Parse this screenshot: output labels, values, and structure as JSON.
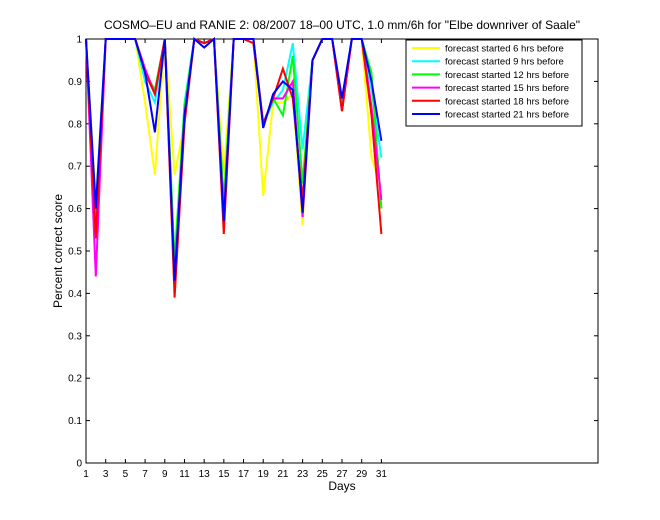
{
  "chart_data": {
    "type": "line",
    "title": "COSMO–EU and RANIE 2: 08/2007 18–00 UTC, 1.0 mm/6h for \"Elbe downriver of Saale\"",
    "xlabel": "Days",
    "ylabel": "Percent correct score",
    "xlim": [
      1,
      53
    ],
    "ylim": [
      0,
      1
    ],
    "x_ticks": [
      "1",
      "3",
      "5",
      "7",
      "9",
      "11",
      "13",
      "15",
      "17",
      "19",
      "21",
      "23",
      "25",
      "27",
      "29",
      "31"
    ],
    "y_ticks": [
      "0",
      "0.1",
      "0.2",
      "0.3",
      "0.4",
      "0.5",
      "0.6",
      "0.7",
      "0.8",
      "0.9",
      "1"
    ],
    "legend_position": "top-right",
    "grid": false,
    "x": [
      1,
      2,
      3,
      4,
      5,
      6,
      7,
      8,
      9,
      10,
      11,
      12,
      13,
      14,
      15,
      16,
      17,
      18,
      19,
      20,
      21,
      22,
      23,
      24,
      25,
      26,
      27,
      28,
      29,
      30,
      31
    ],
    "series": [
      {
        "name": "forecast started 6 hrs before",
        "color": "#ffff00",
        "values": [
          1,
          0.62,
          1,
          1,
          1,
          1,
          0.85,
          0.68,
          1,
          0.68,
          0.8,
          1,
          0.99,
          1,
          0.68,
          1,
          1,
          1,
          0.63,
          0.85,
          0.85,
          0.87,
          0.56,
          0.95,
          1,
          1,
          0.85,
          1,
          1,
          0.72,
          0.65
        ]
      },
      {
        "name": "forecast started 9 hrs before",
        "color": "#00ffff",
        "values": [
          1,
          0.6,
          1,
          1,
          1,
          1,
          0.9,
          0.85,
          1,
          0.45,
          0.85,
          1,
          0.99,
          1,
          0.6,
          1,
          1,
          1,
          0.8,
          0.85,
          0.88,
          0.99,
          0.74,
          0.95,
          1,
          1,
          0.84,
          1,
          1,
          0.88,
          0.72
        ]
      },
      {
        "name": "forecast started 12 hrs before",
        "color": "#00ff00",
        "values": [
          1,
          0.55,
          1,
          1,
          1,
          1,
          0.92,
          0.88,
          1,
          0.48,
          0.84,
          1,
          0.99,
          1,
          0.62,
          1,
          1,
          1,
          0.8,
          0.86,
          0.82,
          0.96,
          0.66,
          0.95,
          1,
          1,
          0.84,
          1,
          1,
          0.92,
          0.6
        ]
      },
      {
        "name": "forecast started 15 hrs before",
        "color": "#ff00ff",
        "values": [
          1,
          0.44,
          1,
          1,
          1,
          1,
          0.93,
          0.87,
          1,
          0.43,
          0.82,
          1,
          0.99,
          1,
          0.58,
          1,
          1,
          1,
          0.8,
          0.86,
          0.86,
          0.9,
          0.58,
          0.95,
          1,
          1,
          0.83,
          1,
          1,
          0.84,
          0.62
        ]
      },
      {
        "name": "forecast started 18 hrs before",
        "color": "#ff0000",
        "values": [
          1,
          0.53,
          1,
          1,
          1,
          1,
          0.92,
          0.87,
          1,
          0.39,
          0.8,
          1,
          0.99,
          1,
          0.54,
          1,
          1,
          0.99,
          0.8,
          0.86,
          0.93,
          0.86,
          0.62,
          0.95,
          1,
          1,
          0.83,
          1,
          1,
          0.82,
          0.54
        ]
      },
      {
        "name": "forecast started 21 hrs before",
        "color": "#0000ff",
        "values": [
          1,
          0.6,
          1,
          1,
          1,
          1,
          0.92,
          0.78,
          1,
          0.43,
          0.82,
          1,
          0.98,
          1,
          0.57,
          1,
          1,
          1,
          0.79,
          0.87,
          0.9,
          0.88,
          0.59,
          0.95,
          1,
          1,
          0.86,
          1,
          1,
          0.9,
          0.76
        ]
      }
    ]
  }
}
